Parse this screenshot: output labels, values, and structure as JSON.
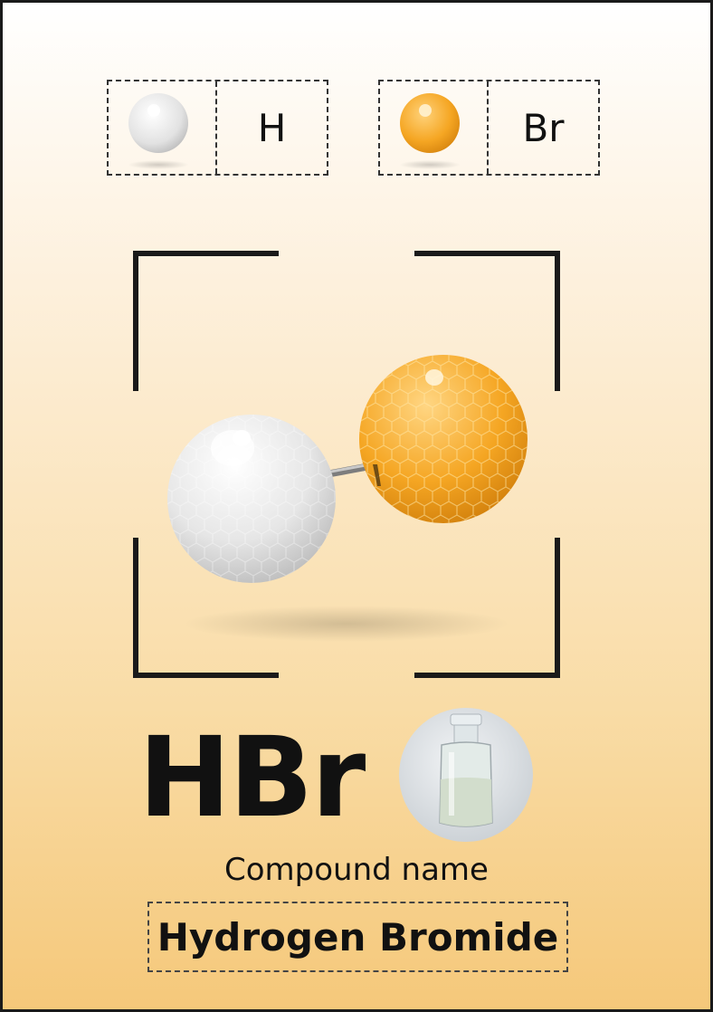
{
  "legend": [
    {
      "symbol": "H",
      "icon": "hydrogen-atom-icon",
      "color": "#e8e8e8"
    },
    {
      "symbol": "Br",
      "icon": "bromine-atom-icon",
      "color": "#f5a623"
    }
  ],
  "formula": "HBr",
  "caption": "Compound name",
  "compound_name": "Hydrogen Bromide",
  "colors": {
    "hydrogen": "#e6e6e6",
    "bromine": "#f5a623",
    "frame": "#1a1a1a"
  }
}
